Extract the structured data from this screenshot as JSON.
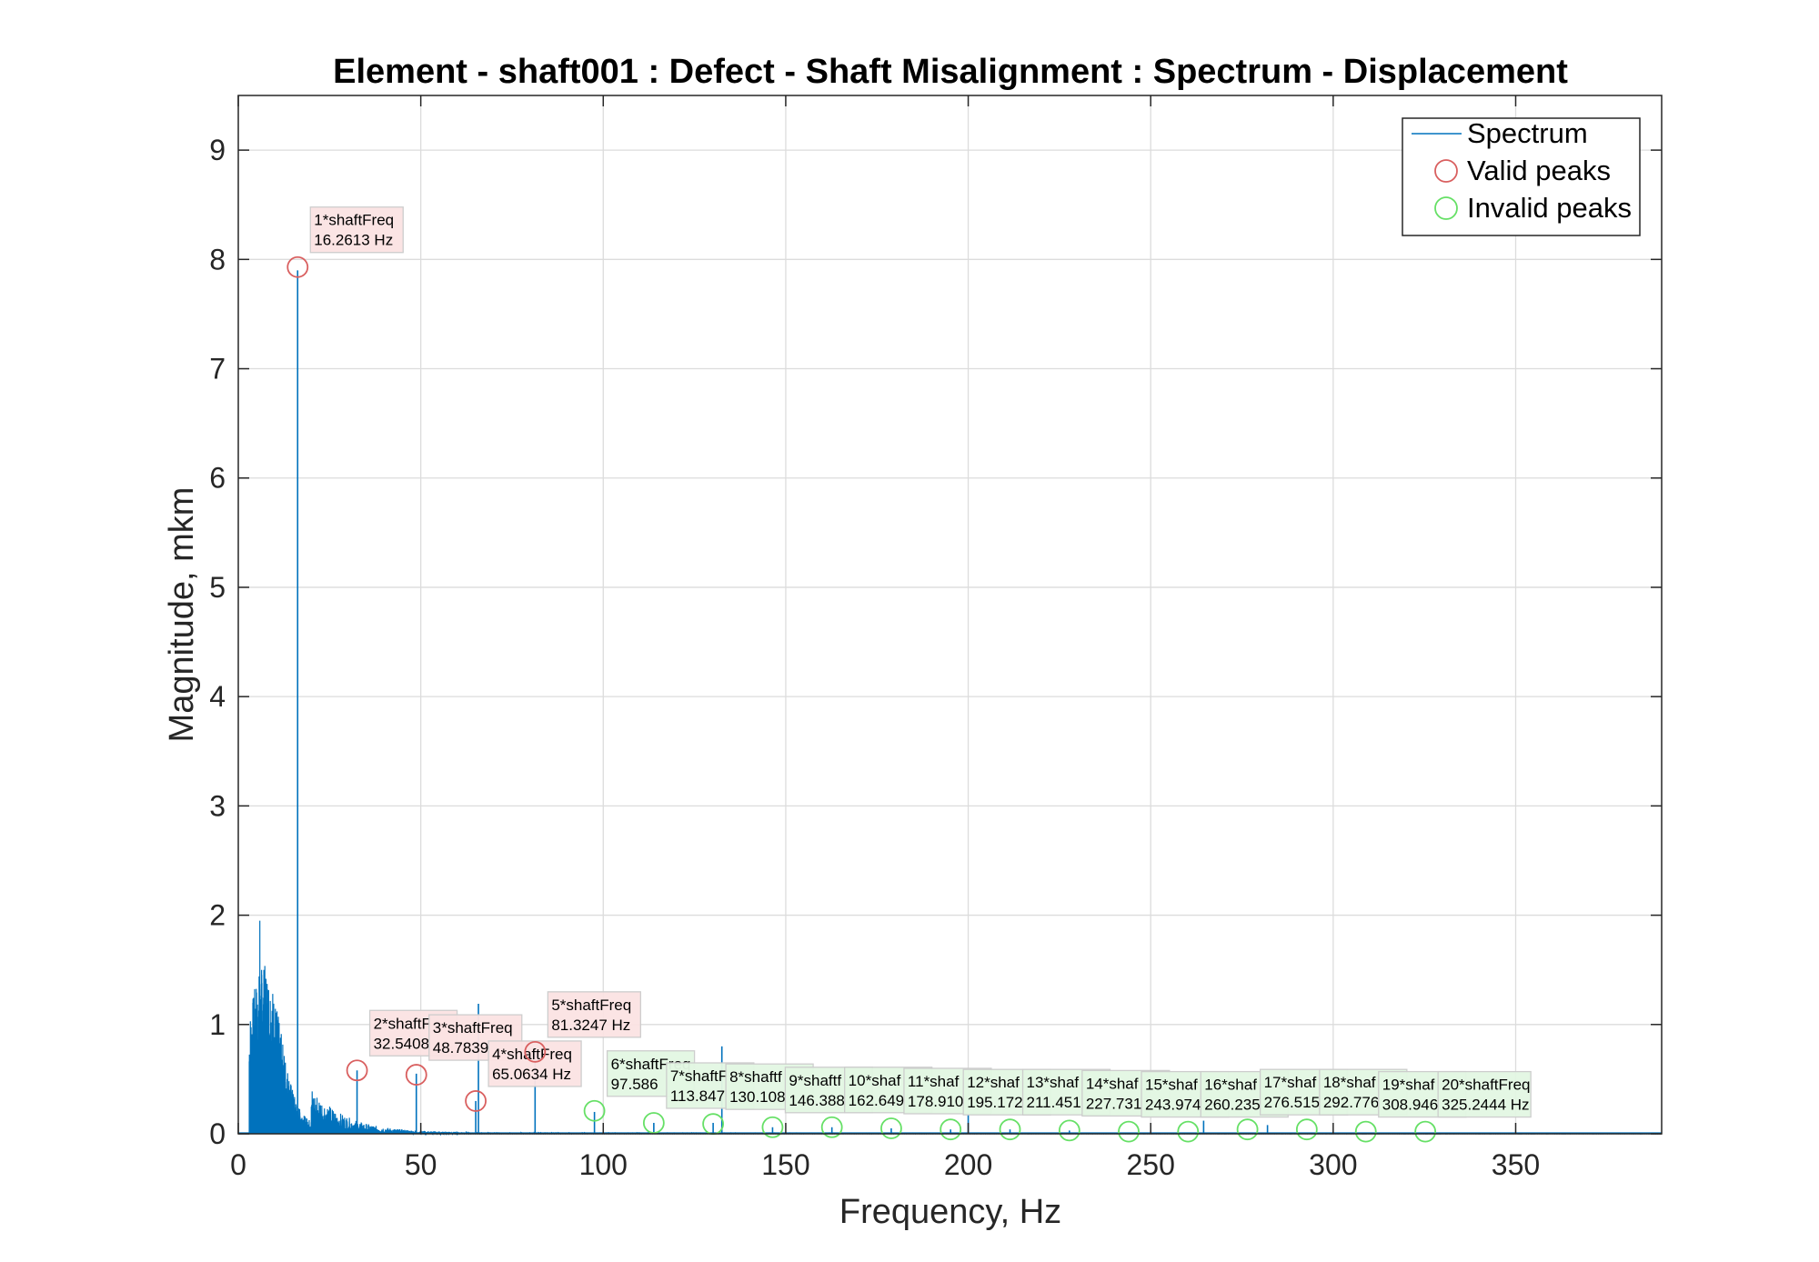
{
  "chart_data": {
    "type": "line",
    "title": "Element - shaft001 : Defect - Shaft Misalignment : Spectrum - Displacement",
    "xlabel": "Frequency, Hz",
    "ylabel": "Magnitude, mkm",
    "xlim": [
      0,
      390
    ],
    "ylim": [
      0,
      9.5
    ],
    "xticks": [
      0,
      50,
      100,
      150,
      200,
      250,
      300,
      350
    ],
    "yticks": [
      0,
      1,
      2,
      3,
      4,
      5,
      6,
      7,
      8,
      9
    ],
    "grid": true,
    "legend_position": "top-right",
    "colors": {
      "spectrum": "#0072BD",
      "valid": "#D95F5F",
      "invalid": "#66E066",
      "valid_box": "#FBE3E3",
      "invalid_box": "#E3F7E3"
    },
    "legend": [
      {
        "label": "Spectrum",
        "kind": "line"
      },
      {
        "label": "Valid peaks",
        "kind": "valid"
      },
      {
        "label": "Invalid peaks",
        "kind": "invalid"
      }
    ],
    "spectrum_spikes": [
      {
        "x": 16.26,
        "y": 7.9
      },
      {
        "x": 32.54,
        "y": 0.58
      },
      {
        "x": 48.78,
        "y": 0.55
      },
      {
        "x": 65.06,
        "y": 0.3
      },
      {
        "x": 65.8,
        "y": 1.19
      },
      {
        "x": 81.32,
        "y": 0.75
      },
      {
        "x": 97.59,
        "y": 0.2
      },
      {
        "x": 113.85,
        "y": 0.1
      },
      {
        "x": 130.11,
        "y": 0.1
      },
      {
        "x": 132.5,
        "y": 0.8
      },
      {
        "x": 146.39,
        "y": 0.06
      },
      {
        "x": 162.65,
        "y": 0.06
      },
      {
        "x": 178.91,
        "y": 0.05
      },
      {
        "x": 195.17,
        "y": 0.04
      },
      {
        "x": 200.0,
        "y": 0.25
      },
      {
        "x": 211.45,
        "y": 0.04
      },
      {
        "x": 227.73,
        "y": 0.03
      },
      {
        "x": 264.5,
        "y": 0.12
      },
      {
        "x": 282.0,
        "y": 0.08
      }
    ],
    "low_frequency_noise": {
      "x_range": [
        3,
        20
      ],
      "peak": 1.95
    },
    "peaks": [
      {
        "label_line1": "1*shaftFreq",
        "label_line2": "16.2613 Hz",
        "x": 16.2613,
        "y": 7.93,
        "valid": true
      },
      {
        "label_line1": "2*shaftF",
        "label_line2": "32.5408",
        "x": 32.5408,
        "y": 0.58,
        "valid": true
      },
      {
        "label_line1": "3*shaftFreq",
        "label_line2": "48.7839",
        "x": 48.7839,
        "y": 0.54,
        "valid": true
      },
      {
        "label_line1": "4*shaftFreq",
        "label_line2": "65.0634 Hz",
        "x": 65.0634,
        "y": 0.3,
        "valid": true
      },
      {
        "label_line1": "5*shaftFreq",
        "label_line2": "81.3247 Hz",
        "x": 81.3247,
        "y": 0.75,
        "valid": true
      },
      {
        "label_line1": "6*shaftFreq",
        "label_line2": "97.586",
        "x": 97.586,
        "y": 0.21,
        "valid": false
      },
      {
        "label_line1": "7*shaftF",
        "label_line2": "113.847",
        "x": 113.847,
        "y": 0.1,
        "valid": false
      },
      {
        "label_line1": "8*shaftf",
        "label_line2": "130.108",
        "x": 130.108,
        "y": 0.09,
        "valid": false
      },
      {
        "label_line1": "9*shaftf",
        "label_line2": "146.388",
        "x": 146.388,
        "y": 0.06,
        "valid": false
      },
      {
        "label_line1": "10*shaf",
        "label_line2": "162.649",
        "x": 162.649,
        "y": 0.06,
        "valid": false
      },
      {
        "label_line1": "11*shaf",
        "label_line2": "178.910",
        "x": 178.91,
        "y": 0.05,
        "valid": false
      },
      {
        "label_line1": "12*shaf",
        "label_line2": "195.172",
        "x": 195.172,
        "y": 0.04,
        "valid": false
      },
      {
        "label_line1": "13*shaf",
        "label_line2": "211.451",
        "x": 211.451,
        "y": 0.04,
        "valid": false
      },
      {
        "label_line1": "14*shaf",
        "label_line2": "227.731",
        "x": 227.731,
        "y": 0.03,
        "valid": false
      },
      {
        "label_line1": "15*shaf",
        "label_line2": "243.974",
        "x": 243.974,
        "y": 0.02,
        "valid": false
      },
      {
        "label_line1": "16*shaf",
        "label_line2": "260.235",
        "x": 260.235,
        "y": 0.02,
        "valid": false
      },
      {
        "label_line1": "17*shaf",
        "label_line2": "276.515",
        "x": 276.515,
        "y": 0.04,
        "valid": false
      },
      {
        "label_line1": "18*shaf",
        "label_line2": "292.776",
        "x": 292.776,
        "y": 0.04,
        "valid": false
      },
      {
        "label_line1": "19*shaf",
        "label_line2": "308.946",
        "x": 308.946,
        "y": 0.02,
        "valid": false
      },
      {
        "label_line1": "20*shaftFreq",
        "label_line2": "325.2444 Hz",
        "x": 325.2444,
        "y": 0.02,
        "valid": false
      }
    ]
  }
}
